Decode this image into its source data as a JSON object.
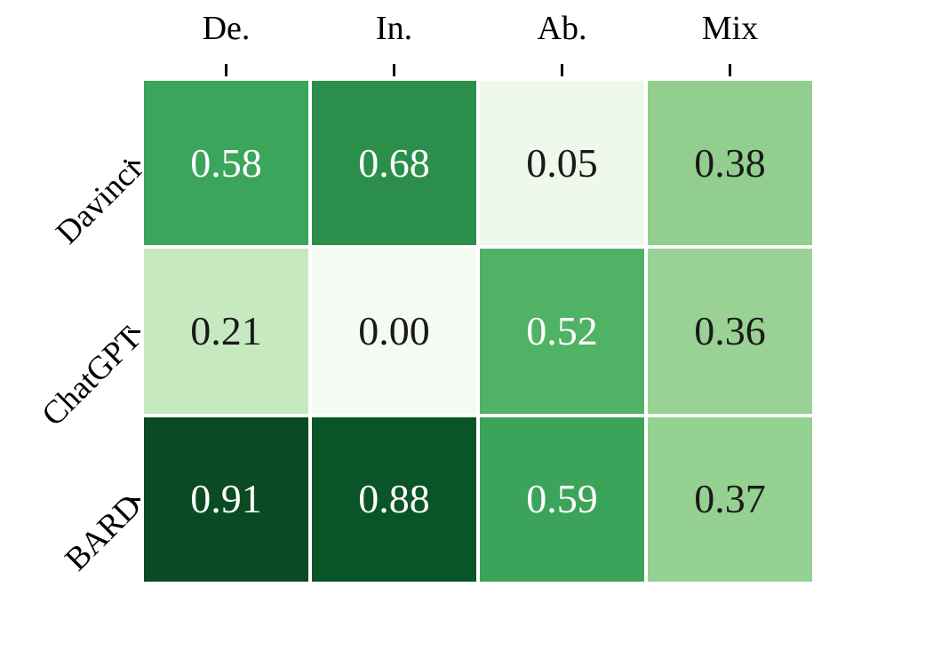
{
  "chart_data": {
    "type": "heatmap",
    "title": "",
    "columns": [
      "De.",
      "In.",
      "Ab.",
      "Mix"
    ],
    "rows": [
      "Davinci",
      "ChatGPT",
      "BARD"
    ],
    "values": [
      [
        0.58,
        0.68,
        0.05,
        0.38
      ],
      [
        0.21,
        0.0,
        0.52,
        0.36
      ],
      [
        0.91,
        0.88,
        0.59,
        0.37
      ]
    ],
    "cell_labels": [
      [
        "0.58",
        "0.68",
        "0.05",
        "0.38"
      ],
      [
        "0.21",
        "0.00",
        "0.52",
        "0.36"
      ],
      [
        "0.91",
        "0.88",
        "0.59",
        "0.37"
      ]
    ],
    "cell_colors": [
      [
        "#3BA55B",
        "#2B8F4B",
        "#EEF8EB",
        "#92CF8E"
      ],
      [
        "#C7E9C0",
        "#F5FBF3",
        "#50B264",
        "#99D294"
      ],
      [
        "#0B4B23",
        "#0A5527",
        "#3BA35A",
        "#95D190"
      ]
    ],
    "cell_text_colors": [
      [
        "#ffffff",
        "#ffffff",
        "#1a1a1a",
        "#1a1a1a"
      ],
      [
        "#1a1a1a",
        "#1a1a1a",
        "#ffffff",
        "#1a1a1a"
      ],
      [
        "#ffffff",
        "#ffffff",
        "#ffffff",
        "#1a1a1a"
      ]
    ],
    "colormap": "Greens",
    "vmin": 0,
    "vmax": 1,
    "tick_color": "#000000",
    "background": "#ffffff",
    "grid": false,
    "legend": "none"
  }
}
